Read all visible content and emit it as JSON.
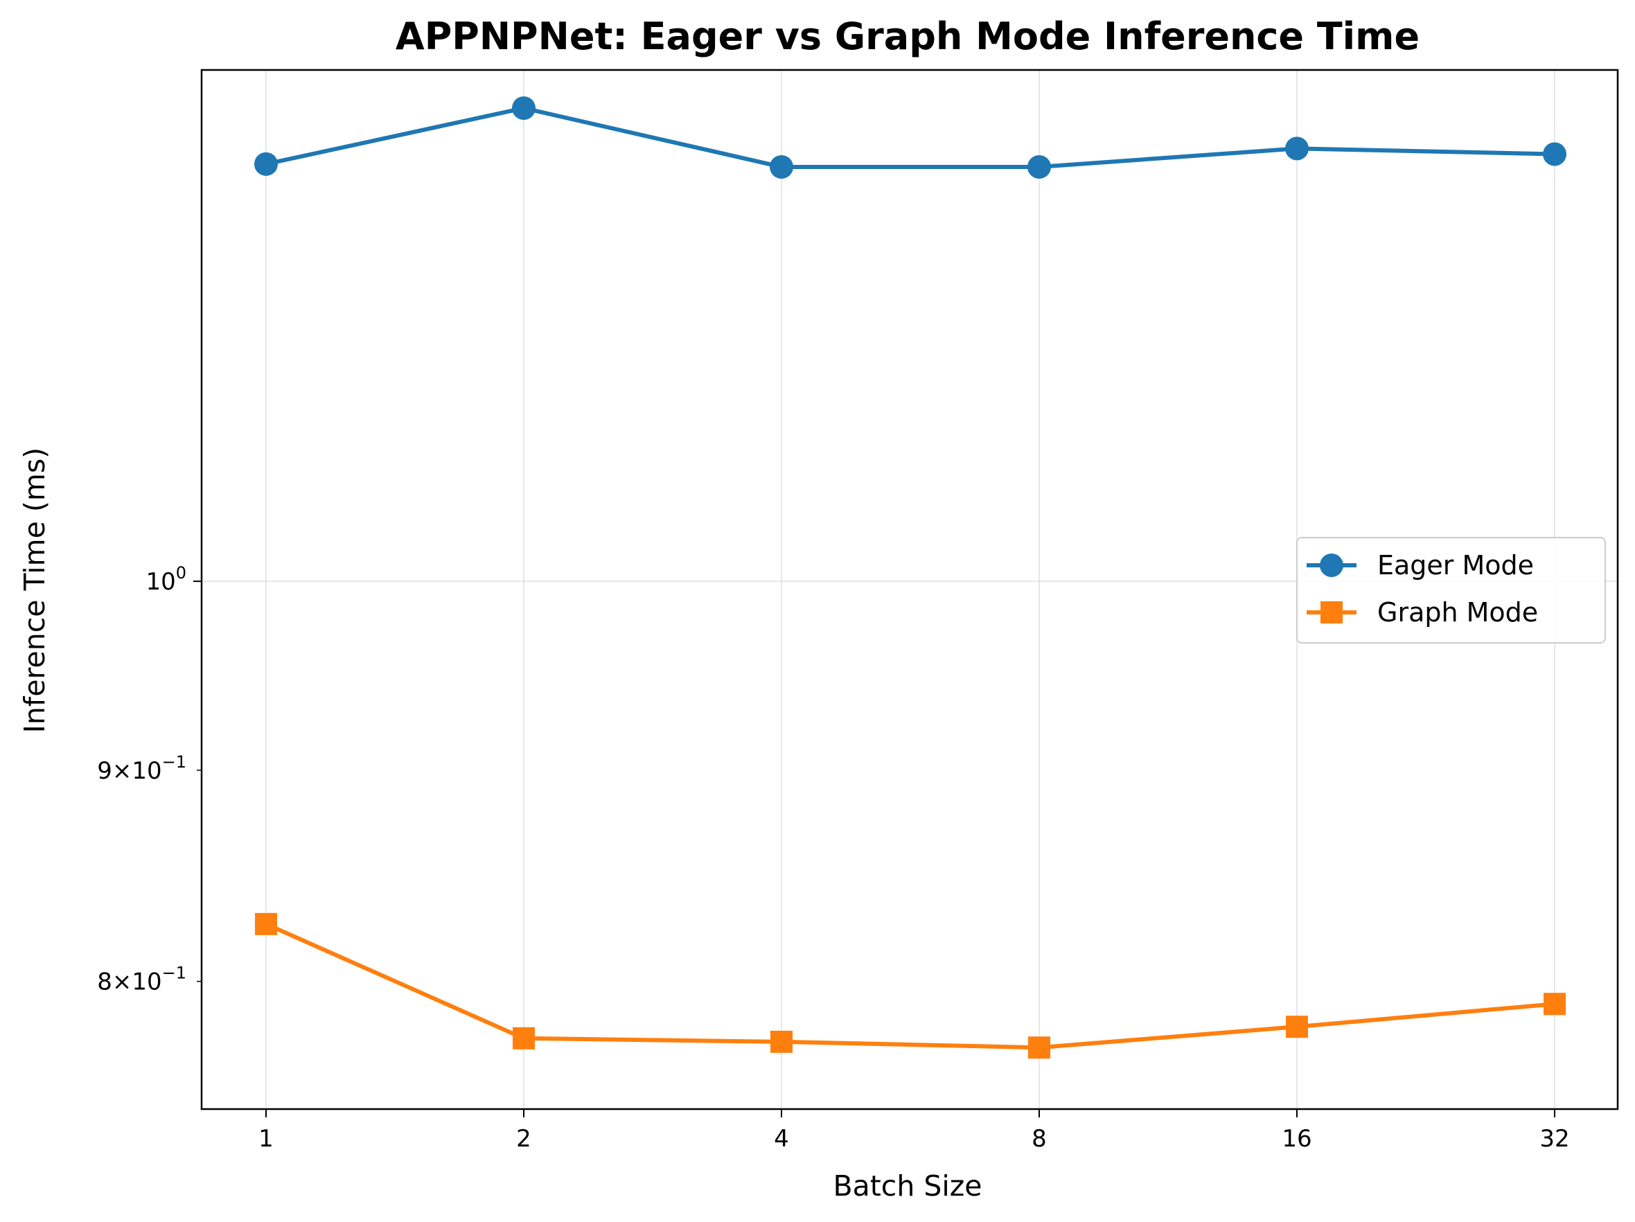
{
  "chart_data": {
    "type": "line",
    "title": "APPNPNet: Eager vs Graph Mode Inference Time",
    "xlabel": "Batch Size",
    "ylabel": "Inference Time (ms)",
    "x": [
      1,
      2,
      4,
      8,
      16,
      32
    ],
    "x_scale": "log2",
    "y_scale": "log",
    "ylim": [
      0.745,
      1.33
    ],
    "grid": true,
    "legend_position": "center-right",
    "x_tick_labels": [
      "1",
      "2",
      "4",
      "8",
      "16",
      "32"
    ],
    "y_ticks": [
      {
        "value": 1.0,
        "base": "10",
        "exp": "0",
        "label": "10^0"
      },
      {
        "value": 0.9,
        "mantissa": "9",
        "base": "10",
        "exp": "−1",
        "label": "9×10^−1"
      },
      {
        "value": 0.8,
        "mantissa": "8",
        "base": "10",
        "exp": "−1",
        "label": "8×10^−1"
      }
    ],
    "series": [
      {
        "name": "Eager Mode",
        "color": "#1f77b4",
        "marker": "circle",
        "values": [
          1.262,
          1.302,
          1.26,
          1.26,
          1.273,
          1.269
        ]
      },
      {
        "name": "Graph Mode",
        "color": "#ff7f0e",
        "marker": "square",
        "values": [
          0.826,
          0.775,
          0.7735,
          0.771,
          0.78,
          0.79
        ]
      }
    ]
  }
}
